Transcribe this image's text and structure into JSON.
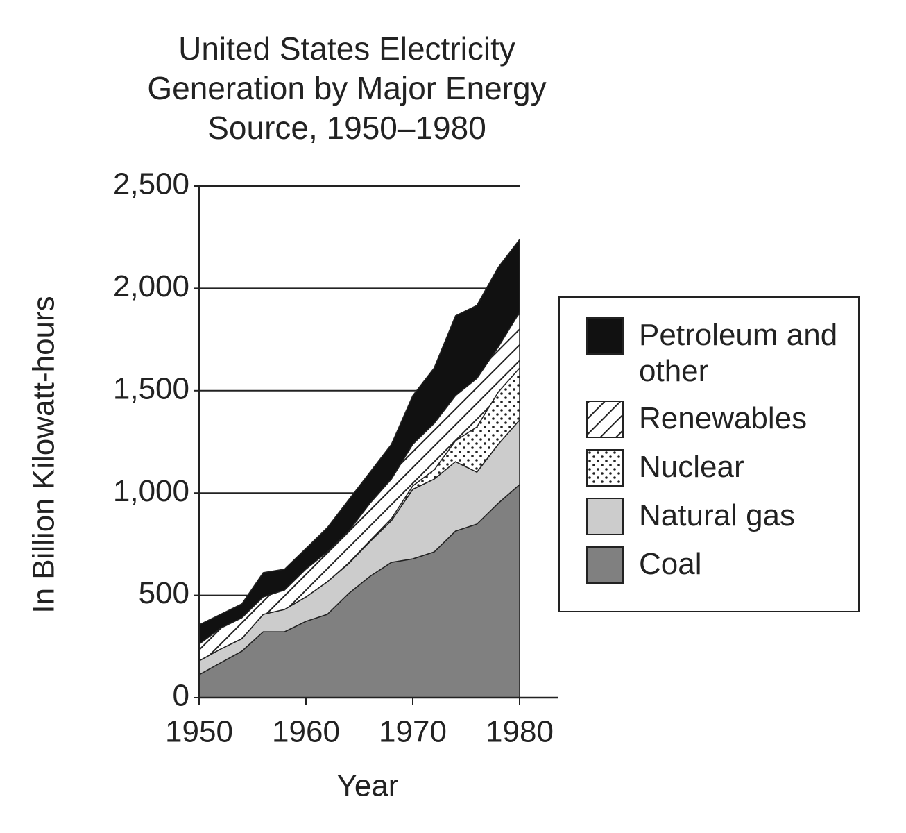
{
  "chart_data": {
    "type": "stacked_area",
    "title": "United States Electricity Generation by Major Energy Source, 1950–1980",
    "x_label": "Year",
    "y_label": "In Billion Kilowatt-hours",
    "x": [
      1950,
      1952,
      1954,
      1956,
      1958,
      1960,
      1962,
      1964,
      1966,
      1968,
      1970,
      1972,
      1974,
      1976,
      1978,
      1980
    ],
    "series": [
      {
        "name": "Coal",
        "color": "#808080",
        "pattern": "solid",
        "values": [
          112,
          170,
          227,
          322,
          322,
          373,
          407,
          509,
          593,
          661,
          678,
          712,
          814,
          848,
          950,
          1041
        ]
      },
      {
        "name": "Natural gas",
        "color": "#cccccc",
        "pattern": "solid",
        "values": [
          68,
          67,
          61,
          85,
          109,
          119,
          159,
          146,
          170,
          204,
          340,
          356,
          339,
          254,
          288,
          316
        ]
      },
      {
        "name": "Nuclear",
        "color": "#222222",
        "pattern": "dots",
        "values": [
          0,
          0,
          0,
          0,
          0,
          0,
          0,
          3,
          5,
          10,
          17,
          45,
          102,
          221,
          255,
          254
        ]
      },
      {
        "name": "Renewables",
        "color": "#222222",
        "pattern": "hatch",
        "values": [
          81,
          102,
          102,
          85,
          95,
          136,
          146,
          156,
          182,
          193,
          203,
          227,
          221,
          237,
          220,
          272
        ]
      },
      {
        "name": "Petroleum and other",
        "color": "#111111",
        "pattern": "solid",
        "values": [
          95,
          68,
          68,
          119,
          102,
          101,
          119,
          153,
          152,
          170,
          238,
          271,
          390,
          357,
          390,
          356
        ]
      }
    ],
    "xlim": [
      1950,
      1980
    ],
    "xticks": [
      1950,
      1960,
      1970,
      1980
    ],
    "ylim": [
      0,
      2500
    ],
    "yticks": [
      0,
      500,
      {
        "value": 1000,
        "label": "1,000"
      },
      {
        "value": 1500,
        "label": "1,500"
      },
      {
        "value": 2000,
        "label": "2,000"
      },
      {
        "value": 2500,
        "label": "2,500"
      }
    ],
    "grid": true,
    "legend": "right"
  }
}
